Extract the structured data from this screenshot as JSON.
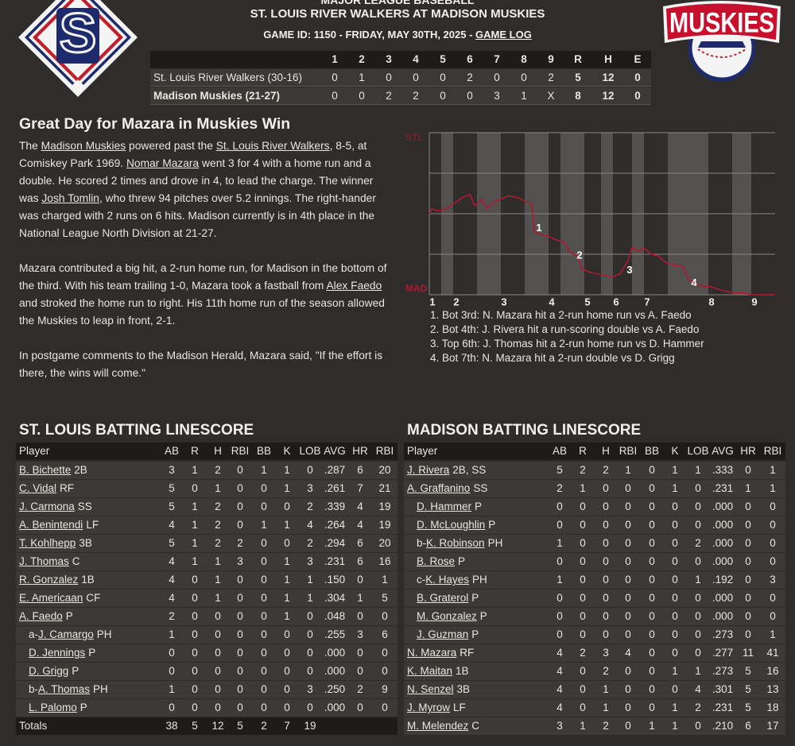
{
  "header": {
    "league": "MAJOR LEAGUE BASEBALL",
    "title": "ST. LOUIS RIVER WALKERS AT MADISON MUSKIES",
    "game_info": "GAME ID: 1150 - FRIDAY, MAY 30TH, 2025 - ",
    "game_log": "GAME LOG"
  },
  "logos": {
    "away": "S",
    "home": "MUSKIES"
  },
  "linescore": {
    "headers": [
      "1",
      "2",
      "3",
      "4",
      "5",
      "6",
      "7",
      "8",
      "9",
      "R",
      "H",
      "E"
    ],
    "rows": [
      {
        "team": "St. Louis River Walkers (30-16)",
        "scores": [
          0,
          1,
          0,
          0,
          0,
          2,
          0,
          0,
          2,
          5,
          12,
          0
        ]
      },
      {
        "team": "Madison Muskies (21-27)",
        "bold": true,
        "scores": [
          0,
          0,
          2,
          2,
          0,
          0,
          3,
          1,
          "X",
          8,
          12,
          0
        ]
      }
    ]
  },
  "article": {
    "headline": "Great Day for Mazara in Muskies Win",
    "paragraphs": [
      [
        {
          "text": "The "
        },
        {
          "text": "Madison Muskies",
          "link": true
        },
        {
          "text": " powered past the "
        },
        {
          "text": "St. Louis River Walkers",
          "link": true
        },
        {
          "text": ", 8-5, at Comiskey Park 1969. "
        },
        {
          "text": "Nomar Mazara",
          "link": true
        },
        {
          "text": " went 3 for 4 with a home run and a double. He scored 2 times and drove in 4, to lead the charge. The winner was "
        },
        {
          "text": "Josh Tomlin",
          "link": true
        },
        {
          "text": ", who threw 94 pitches over 5.2 innings. The right-hander was charged with 2 runs on 6 hits. Madison currently is in 4th place in the National League North Division at 21-27."
        }
      ],
      [
        {
          "text": "Mazara contributed a big hit, a 2-run home run, for Madison in the bottom of the third. With his team trailing 1-0, Mazara took a fastball from "
        },
        {
          "text": "Alex Faedo",
          "link": true
        },
        {
          "text": " and stroked the home run to right. His 11th home run of the season allowed the Muskies to leap in front, 2-1."
        }
      ],
      [
        {
          "text": "In postgame comments to the Madison Herald, Mazara said, \"If the effort is there, the wins will come.\""
        }
      ]
    ]
  },
  "chart_data": {
    "type": "line",
    "color": "#b01a30",
    "x": [
      0,
      1,
      3,
      5,
      7,
      9,
      12,
      14,
      17,
      19,
      22,
      24,
      27,
      30,
      33,
      37,
      40,
      43,
      44,
      47,
      50,
      53,
      57,
      59,
      62,
      64,
      67,
      70,
      73,
      77,
      80,
      83,
      85,
      88,
      90,
      93,
      96,
      99,
      103,
      106,
      109,
      112,
      115,
      118,
      122,
      125,
      128,
      132,
      135,
      140,
      145
    ],
    "values": [
      50,
      53,
      52,
      52,
      53,
      55,
      58,
      60,
      62,
      55,
      59,
      53,
      57,
      59,
      61,
      60,
      58,
      56,
      39,
      37,
      36,
      34,
      32,
      26,
      24,
      16,
      14,
      13,
      12,
      11,
      13,
      20,
      29,
      27,
      29,
      25,
      24,
      20,
      18,
      18,
      9,
      7,
      5,
      5,
      3,
      2,
      1,
      1,
      0,
      0,
      0
    ],
    "xlim": [
      0,
      145
    ],
    "ylim": [
      0,
      100
    ],
    "yticks": [
      {
        "value": 100,
        "label": "STL"
      },
      {
        "value": 0,
        "label": "MAD"
      }
    ],
    "grid_lines": [
      25,
      50,
      75
    ],
    "innings": [
      {
        "label": "1",
        "top": 0,
        "bottom": 5
      },
      {
        "label": "2",
        "top": 10,
        "bottom": 20
      },
      {
        "label": "3",
        "top": 30,
        "bottom": 40
      },
      {
        "label": "4",
        "top": 50,
        "bottom": 55
      },
      {
        "label": "5",
        "top": 65,
        "bottom": 72
      },
      {
        "label": "6",
        "top": 77,
        "bottom": 85
      },
      {
        "label": "7",
        "top": 90,
        "bottom": 100
      },
      {
        "label": "8",
        "top": 117,
        "bottom": 127
      },
      {
        "label": "9",
        "top": 135
      }
    ],
    "annotations": [
      {
        "label": "1",
        "x": 46,
        "y": 41
      },
      {
        "label": "2",
        "x": 63,
        "y": 24
      },
      {
        "label": "3",
        "x": 84,
        "y": 15
      },
      {
        "label": "4",
        "x": 111,
        "y": 7
      }
    ],
    "notes": [
      "1. Bot 3rd: N. Mazara hit a 2-run home run vs A. Faedo",
      "2. Bot 4th: J. Rivera hit a run-scoring double vs A. Faedo",
      "3. Top 6th: J. Thomas hit a 2-run home run vs D. Hammer",
      "4. Bot 7th: N. Mazara hit a 2-run double vs D. Grigg"
    ]
  },
  "batting": [
    {
      "title": "ST. LOUIS BATTING LINESCORE",
      "columns": [
        "Player",
        "AB",
        "R",
        "H",
        "RBI",
        "BB",
        "K",
        "LOB",
        "AVG",
        "HR",
        "RBI"
      ],
      "rows": [
        {
          "name": "B. Bichette",
          "pos": "2B",
          "stats": [
            3,
            1,
            2,
            0,
            1,
            1,
            0,
            ".287",
            6,
            20
          ]
        },
        {
          "name": "C. Vidal",
          "pos": "RF",
          "stats": [
            5,
            0,
            1,
            0,
            0,
            1,
            3,
            ".261",
            7,
            21
          ]
        },
        {
          "name": "J. Carmona",
          "pos": "SS",
          "stats": [
            5,
            1,
            2,
            0,
            0,
            0,
            2,
            ".339",
            4,
            19
          ]
        },
        {
          "name": "A. Benintendi",
          "pos": "LF",
          "stats": [
            4,
            1,
            2,
            0,
            1,
            1,
            4,
            ".264",
            4,
            19
          ]
        },
        {
          "name": "T. Kohlhepp",
          "pos": "3B",
          "stats": [
            5,
            1,
            2,
            2,
            0,
            0,
            2,
            ".294",
            6,
            20
          ]
        },
        {
          "name": "J. Thomas",
          "pos": "C",
          "stats": [
            4,
            1,
            1,
            3,
            0,
            1,
            3,
            ".231",
            6,
            16
          ]
        },
        {
          "name": "R. Gonzalez",
          "pos": "1B",
          "stats": [
            4,
            0,
            1,
            0,
            0,
            1,
            1,
            ".150",
            0,
            1
          ]
        },
        {
          "name": "E. Americaan",
          "pos": "CF",
          "stats": [
            4,
            0,
            1,
            0,
            0,
            1,
            1,
            ".304",
            1,
            5
          ]
        },
        {
          "name": "A. Faedo",
          "pos": "P",
          "stats": [
            2,
            0,
            0,
            0,
            0,
            1,
            0,
            ".048",
            0,
            0
          ]
        },
        {
          "prefix": "a-",
          "name": "J. Camargo",
          "pos": "PH",
          "indent": true,
          "stats": [
            1,
            0,
            0,
            0,
            0,
            0,
            0,
            ".255",
            3,
            6
          ]
        },
        {
          "name": "D. Jennings",
          "pos": "P",
          "indent": true,
          "stats": [
            0,
            0,
            0,
            0,
            0,
            0,
            0,
            ".000",
            0,
            0
          ]
        },
        {
          "name": "D. Grigg",
          "pos": "P",
          "indent": true,
          "stats": [
            0,
            0,
            0,
            0,
            0,
            0,
            0,
            ".000",
            0,
            0
          ]
        },
        {
          "prefix": "b-",
          "name": "A. Thomas",
          "pos": "PH",
          "indent": true,
          "stats": [
            1,
            0,
            0,
            0,
            0,
            0,
            3,
            ".250",
            2,
            9
          ]
        },
        {
          "name": "L. Palomo",
          "pos": "P",
          "indent": true,
          "stats": [
            0,
            0,
            0,
            0,
            0,
            0,
            0,
            ".000",
            0,
            0
          ]
        }
      ],
      "totals": {
        "label": "Totals",
        "stats": [
          38,
          5,
          12,
          5,
          2,
          7,
          19
        ]
      }
    },
    {
      "title": "MADISON BATTING LINESCORE",
      "columns": [
        "Player",
        "AB",
        "R",
        "H",
        "RBI",
        "BB",
        "K",
        "LOB",
        "AVG",
        "HR",
        "RBI"
      ],
      "rows": [
        {
          "name": "J. Rivera",
          "pos": "2B, SS",
          "stats": [
            5,
            2,
            2,
            1,
            0,
            1,
            1,
            ".333",
            0,
            1
          ]
        },
        {
          "name": "A. Graffanino",
          "pos": "SS",
          "stats": [
            2,
            1,
            0,
            0,
            0,
            1,
            0,
            ".231",
            1,
            1
          ]
        },
        {
          "name": "D. Hammer",
          "pos": "P",
          "indent": true,
          "stats": [
            0,
            0,
            0,
            0,
            0,
            0,
            0,
            ".000",
            0,
            0
          ]
        },
        {
          "name": "D. McLoughlin",
          "pos": "P",
          "indent": true,
          "stats": [
            0,
            0,
            0,
            0,
            0,
            0,
            0,
            ".000",
            0,
            0
          ]
        },
        {
          "prefix": "b-",
          "name": "K. Robinson",
          "pos": "PH",
          "indent": true,
          "stats": [
            1,
            0,
            0,
            0,
            0,
            0,
            2,
            ".000",
            0,
            0
          ]
        },
        {
          "name": "B. Rose",
          "pos": "P",
          "indent": true,
          "stats": [
            0,
            0,
            0,
            0,
            0,
            0,
            0,
            ".000",
            0,
            0
          ]
        },
        {
          "prefix": "c-",
          "name": "K. Hayes",
          "pos": "PH",
          "indent": true,
          "stats": [
            1,
            0,
            0,
            0,
            0,
            0,
            1,
            ".192",
            0,
            3
          ]
        },
        {
          "name": "B. Graterol",
          "pos": "P",
          "indent": true,
          "stats": [
            0,
            0,
            0,
            0,
            0,
            0,
            0,
            ".000",
            0,
            0
          ]
        },
        {
          "name": "M. Gonzalez",
          "pos": "P",
          "indent": true,
          "stats": [
            0,
            0,
            0,
            0,
            0,
            0,
            0,
            ".000",
            0,
            0
          ]
        },
        {
          "name": "J. Guzman",
          "pos": "P",
          "indent": true,
          "stats": [
            0,
            0,
            0,
            0,
            0,
            0,
            0,
            ".273",
            0,
            1
          ]
        },
        {
          "name": "N. Mazara",
          "pos": "RF",
          "stats": [
            4,
            2,
            3,
            4,
            0,
            0,
            0,
            ".277",
            11,
            41
          ]
        },
        {
          "name": "K. Maitan",
          "pos": "1B",
          "stats": [
            4,
            0,
            2,
            0,
            0,
            1,
            1,
            ".273",
            5,
            16
          ]
        },
        {
          "name": "N. Senzel",
          "pos": "3B",
          "stats": [
            4,
            0,
            1,
            0,
            0,
            0,
            4,
            ".301",
            5,
            13
          ]
        },
        {
          "name": "J. Myrow",
          "pos": "LF",
          "stats": [
            4,
            0,
            1,
            0,
            0,
            1,
            2,
            ".231",
            5,
            18
          ]
        },
        {
          "name": "M. Melendez",
          "pos": "C",
          "stats": [
            3,
            1,
            2,
            0,
            1,
            1,
            0,
            ".210",
            6,
            17
          ]
        }
      ]
    }
  ]
}
